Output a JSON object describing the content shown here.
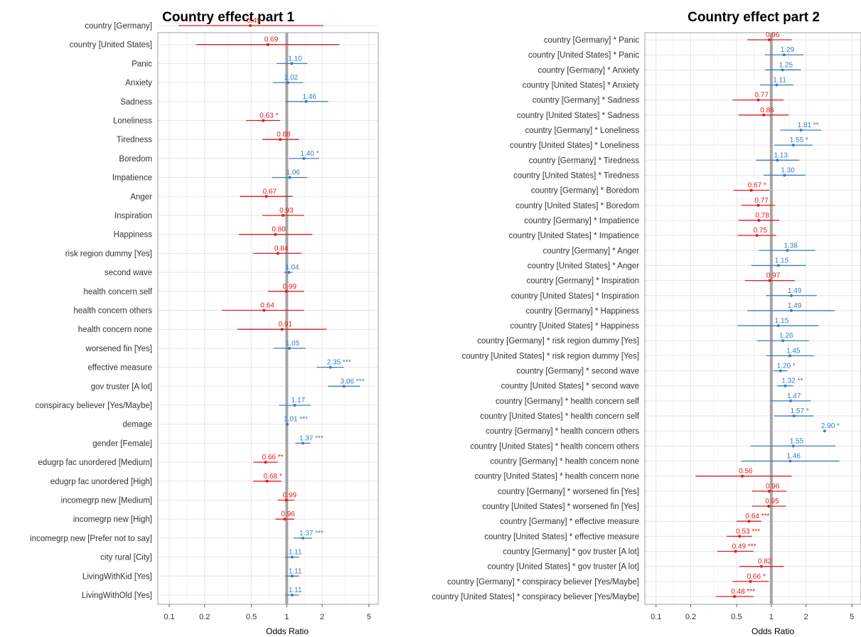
{
  "colors": {
    "positive": "#3a7dc4",
    "negative": "#e41a1c",
    "reference": "#a6a6a6",
    "grid": "#e5e5e5",
    "frame": "#a0a0a0"
  },
  "chart_data": [
    {
      "type": "forest",
      "title": "Country effect part 1",
      "xlabel": "Odds Ratio",
      "xscale": "log",
      "xlim": [
        0.08,
        6
      ],
      "xticks": [
        0.1,
        0.2,
        0.5,
        1,
        2,
        5
      ],
      "xtick_labels": [
        "0.1",
        "0.2",
        "0.5",
        "1",
        "2",
        "5"
      ],
      "reference_line": 1,
      "grid": true,
      "terms": [
        {
          "label": "country [Germany]",
          "or": 0.49,
          "lo": 0.12,
          "hi": 2.05,
          "text": "0.49"
        },
        {
          "label": "country [United States]",
          "or": 0.69,
          "lo": 0.17,
          "hi": 2.8,
          "text": "0.69"
        },
        {
          "label": "Panic",
          "or": 1.1,
          "lo": 0.82,
          "hi": 1.5,
          "text": "1.10"
        },
        {
          "label": "Anxiety",
          "or": 1.02,
          "lo": 0.76,
          "hi": 1.38,
          "text": "1.02"
        },
        {
          "label": "Sadness",
          "or": 1.46,
          "lo": 0.98,
          "hi": 2.25,
          "text": "1.46"
        },
        {
          "label": "Loneliness",
          "or": 0.63,
          "lo": 0.45,
          "hi": 0.88,
          "text": "0.63 *"
        },
        {
          "label": "Tiredness",
          "or": 0.88,
          "lo": 0.62,
          "hi": 1.27,
          "text": "0.88"
        },
        {
          "label": "Boredom",
          "or": 1.4,
          "lo": 1.04,
          "hi": 1.88,
          "text": "1.40 *"
        },
        {
          "label": "Impatience",
          "or": 1.06,
          "lo": 0.75,
          "hi": 1.5,
          "text": "1.06"
        },
        {
          "label": "Anger",
          "or": 0.67,
          "lo": 0.4,
          "hi": 1.12,
          "text": "0.67"
        },
        {
          "label": "Inspiration",
          "or": 0.93,
          "lo": 0.62,
          "hi": 1.4,
          "text": "0.93"
        },
        {
          "label": "Happiness",
          "or": 0.8,
          "lo": 0.39,
          "hi": 1.65,
          "text": "0.80"
        },
        {
          "label": "risk region dummy [Yes]",
          "or": 0.84,
          "lo": 0.52,
          "hi": 1.34,
          "text": "0.84"
        },
        {
          "label": "second wave",
          "or": 1.04,
          "lo": 0.95,
          "hi": 1.12,
          "text": "1.04"
        },
        {
          "label": "health concern self",
          "or": 0.99,
          "lo": 0.69,
          "hi": 1.4,
          "text": "0.99"
        },
        {
          "label": "health concern others",
          "or": 0.64,
          "lo": 0.28,
          "hi": 1.4,
          "text": "0.64"
        },
        {
          "label": "health concern none",
          "or": 0.91,
          "lo": 0.38,
          "hi": 2.18,
          "text": "0.91"
        },
        {
          "label": "worsened fin [Yes]",
          "or": 1.05,
          "lo": 0.77,
          "hi": 1.45,
          "text": "1.05"
        },
        {
          "label": "effective measure",
          "or": 2.35,
          "lo": 1.8,
          "hi": 3.05,
          "text": "2.35 ***"
        },
        {
          "label": "gov truster [A lot]",
          "or": 3.06,
          "lo": 2.25,
          "hi": 4.2,
          "text": "3.06 ***"
        },
        {
          "label": "conspiracy believer [Yes/Maybe]",
          "or": 1.17,
          "lo": 0.86,
          "hi": 1.6,
          "text": "1.17"
        },
        {
          "label": "demage",
          "or": 1.01,
          "lo": 1.005,
          "hi": 1.015,
          "text": "1.01 ***"
        },
        {
          "label": "gender [Female]",
          "or": 1.37,
          "lo": 1.18,
          "hi": 1.6,
          "text": "1.37 ***"
        },
        {
          "label": "edugrp fac unordered [Medium]",
          "or": 0.66,
          "lo": 0.52,
          "hi": 0.84,
          "text": "0.66 **"
        },
        {
          "label": "edugrp fac unordered [High]",
          "or": 0.68,
          "lo": 0.52,
          "hi": 0.9,
          "text": "0.68 *"
        },
        {
          "label": "incomegrp new [Medium]",
          "or": 0.99,
          "lo": 0.84,
          "hi": 1.16,
          "text": "0.99"
        },
        {
          "label": "incomegrp new [High]",
          "or": 0.96,
          "lo": 0.8,
          "hi": 1.16,
          "text": "0.96"
        },
        {
          "label": "incomegrp new [Prefer not to say]",
          "or": 1.37,
          "lo": 1.14,
          "hi": 1.64,
          "text": "1.37 ***"
        },
        {
          "label": "city rural [City]",
          "or": 1.11,
          "lo": 0.97,
          "hi": 1.27,
          "text": "1.11"
        },
        {
          "label": "LivingWithKid [Yes]",
          "or": 1.11,
          "lo": 0.97,
          "hi": 1.27,
          "text": "1.11"
        },
        {
          "label": "LivingWithOld [Yes]",
          "or": 1.11,
          "lo": 0.97,
          "hi": 1.27,
          "text": "1.11"
        }
      ]
    },
    {
      "type": "forest",
      "title": "Country effect part 2",
      "xlabel": "Odds Ratio",
      "xscale": "log",
      "xlim": [
        0.08,
        6
      ],
      "xticks": [
        0.1,
        0.2,
        0.5,
        1,
        2,
        5
      ],
      "xtick_labels": [
        "0.1",
        "0.2",
        "0.5",
        "1",
        "2",
        "5"
      ],
      "reference_line": 1,
      "grid": true,
      "terms": [
        {
          "label": "country [Germany] * Panic",
          "or": 0.96,
          "lo": 0.62,
          "hi": 1.5,
          "text": "0.96"
        },
        {
          "label": "country [United States] * Panic",
          "or": 1.29,
          "lo": 0.88,
          "hi": 1.9,
          "text": "1.29"
        },
        {
          "label": "country [Germany] * Anxiety",
          "or": 1.25,
          "lo": 0.88,
          "hi": 1.8,
          "text": "1.25"
        },
        {
          "label": "country [United States] * Anxiety",
          "or": 1.11,
          "lo": 0.8,
          "hi": 1.55,
          "text": "1.11"
        },
        {
          "label": "country [Germany] * Sadness",
          "or": 0.77,
          "lo": 0.46,
          "hi": 1.28,
          "text": "0.77"
        },
        {
          "label": "country [United States] * Sadness",
          "or": 0.86,
          "lo": 0.52,
          "hi": 1.42,
          "text": "0.86"
        },
        {
          "label": "country [Germany] * Loneliness",
          "or": 1.81,
          "lo": 1.2,
          "hi": 2.7,
          "text": "1.81 **"
        },
        {
          "label": "country [United States] * Loneliness",
          "or": 1.55,
          "lo": 1.06,
          "hi": 2.28,
          "text": "1.55 *"
        },
        {
          "label": "country [Germany] * Tiredness",
          "or": 1.13,
          "lo": 0.74,
          "hi": 1.75,
          "text": "1.13"
        },
        {
          "label": "country [United States] * Tiredness",
          "or": 1.3,
          "lo": 0.86,
          "hi": 1.98,
          "text": "1.30"
        },
        {
          "label": "country [Germany] * Boredom",
          "or": 0.67,
          "lo": 0.47,
          "hi": 0.96,
          "text": "0.67 *"
        },
        {
          "label": "country [United States] * Boredom",
          "or": 0.77,
          "lo": 0.55,
          "hi": 1.08,
          "text": "0.77"
        },
        {
          "label": "country [Germany] * Impatience",
          "or": 0.78,
          "lo": 0.52,
          "hi": 1.17,
          "text": "0.78"
        },
        {
          "label": "country [United States] * Impatience",
          "or": 0.75,
          "lo": 0.51,
          "hi": 1.1,
          "text": "0.75"
        },
        {
          "label": "country [Germany] * Anger",
          "or": 1.38,
          "lo": 0.78,
          "hi": 2.4,
          "text": "1.38"
        },
        {
          "label": "country [United States] * Anger",
          "or": 1.15,
          "lo": 0.67,
          "hi": 2.0,
          "text": "1.15"
        },
        {
          "label": "country [Germany] * Inspiration",
          "or": 0.97,
          "lo": 0.59,
          "hi": 1.6,
          "text": "0.97"
        },
        {
          "label": "country [United States] * Inspiration",
          "or": 1.49,
          "lo": 0.9,
          "hi": 2.48,
          "text": "1.49"
        },
        {
          "label": "country [Germany] * Happiness",
          "or": 1.49,
          "lo": 0.62,
          "hi": 3.55,
          "text": "1.49"
        },
        {
          "label": "country [United States] * Happiness",
          "or": 1.15,
          "lo": 0.51,
          "hi": 2.58,
          "text": "1.15"
        },
        {
          "label": "country [Germany] * risk region dummy [Yes]",
          "or": 1.26,
          "lo": 0.75,
          "hi": 2.12,
          "text": "1.26"
        },
        {
          "label": "country [United States] * risk region dummy [Yes]",
          "or": 1.45,
          "lo": 0.9,
          "hi": 2.35,
          "text": "1.45"
        },
        {
          "label": "country [Germany] * second wave",
          "or": 1.2,
          "lo": 1.04,
          "hi": 1.38,
          "text": "1.20 *"
        },
        {
          "label": "country [United States] * second wave",
          "or": 1.32,
          "lo": 1.12,
          "hi": 1.55,
          "text": "1.32 **"
        },
        {
          "label": "country [Germany] * health concern self",
          "or": 1.47,
          "lo": 0.98,
          "hi": 2.2,
          "text": "1.47"
        },
        {
          "label": "country [United States] * health concern self",
          "or": 1.57,
          "lo": 1.06,
          "hi": 2.32,
          "text": "1.57 *"
        },
        {
          "label": "country [Germany] * health concern others",
          "or": 2.9,
          "lo": 2.9,
          "hi": 2.9,
          "text": "2.90 *"
        },
        {
          "label": "country [United States] * health concern others",
          "or": 1.55,
          "lo": 0.66,
          "hi": 3.6,
          "text": "1.55"
        },
        {
          "label": "country [Germany] * health concern none",
          "or": 1.46,
          "lo": 0.55,
          "hi": 3.9,
          "text": "1.46"
        },
        {
          "label": "country [United States] * health concern none",
          "or": 0.56,
          "lo": 0.22,
          "hi": 1.5,
          "text": "0.56"
        },
        {
          "label": "country [Germany] * worsened fin [Yes]",
          "or": 0.96,
          "lo": 0.68,
          "hi": 1.36,
          "text": "0.96"
        },
        {
          "label": "country [United States] * worsened fin [Yes]",
          "or": 0.95,
          "lo": 0.68,
          "hi": 1.34,
          "text": "0.95"
        },
        {
          "label": "country [Germany] * effective measure",
          "or": 0.64,
          "lo": 0.5,
          "hi": 0.82,
          "text": "0.64 ***"
        },
        {
          "label": "country [United States] * effective measure",
          "or": 0.53,
          "lo": 0.41,
          "hi": 0.68,
          "text": "0.53 ***"
        },
        {
          "label": "country [Germany] * gov truster [A lot]",
          "or": 0.49,
          "lo": 0.34,
          "hi": 0.7,
          "text": "0.49 ***"
        },
        {
          "label": "country [United States] * gov truster [A lot]",
          "or": 0.82,
          "lo": 0.53,
          "hi": 1.28,
          "text": "0.82"
        },
        {
          "label": "country [Germany] * conspiracy believer [Yes/Maybe]",
          "or": 0.66,
          "lo": 0.46,
          "hi": 0.95,
          "text": "0.66 *"
        },
        {
          "label": "country [United States] * conspiracy believer [Yes/Maybe]",
          "or": 0.48,
          "lo": 0.33,
          "hi": 0.7,
          "text": "0.48 ***"
        }
      ]
    }
  ]
}
